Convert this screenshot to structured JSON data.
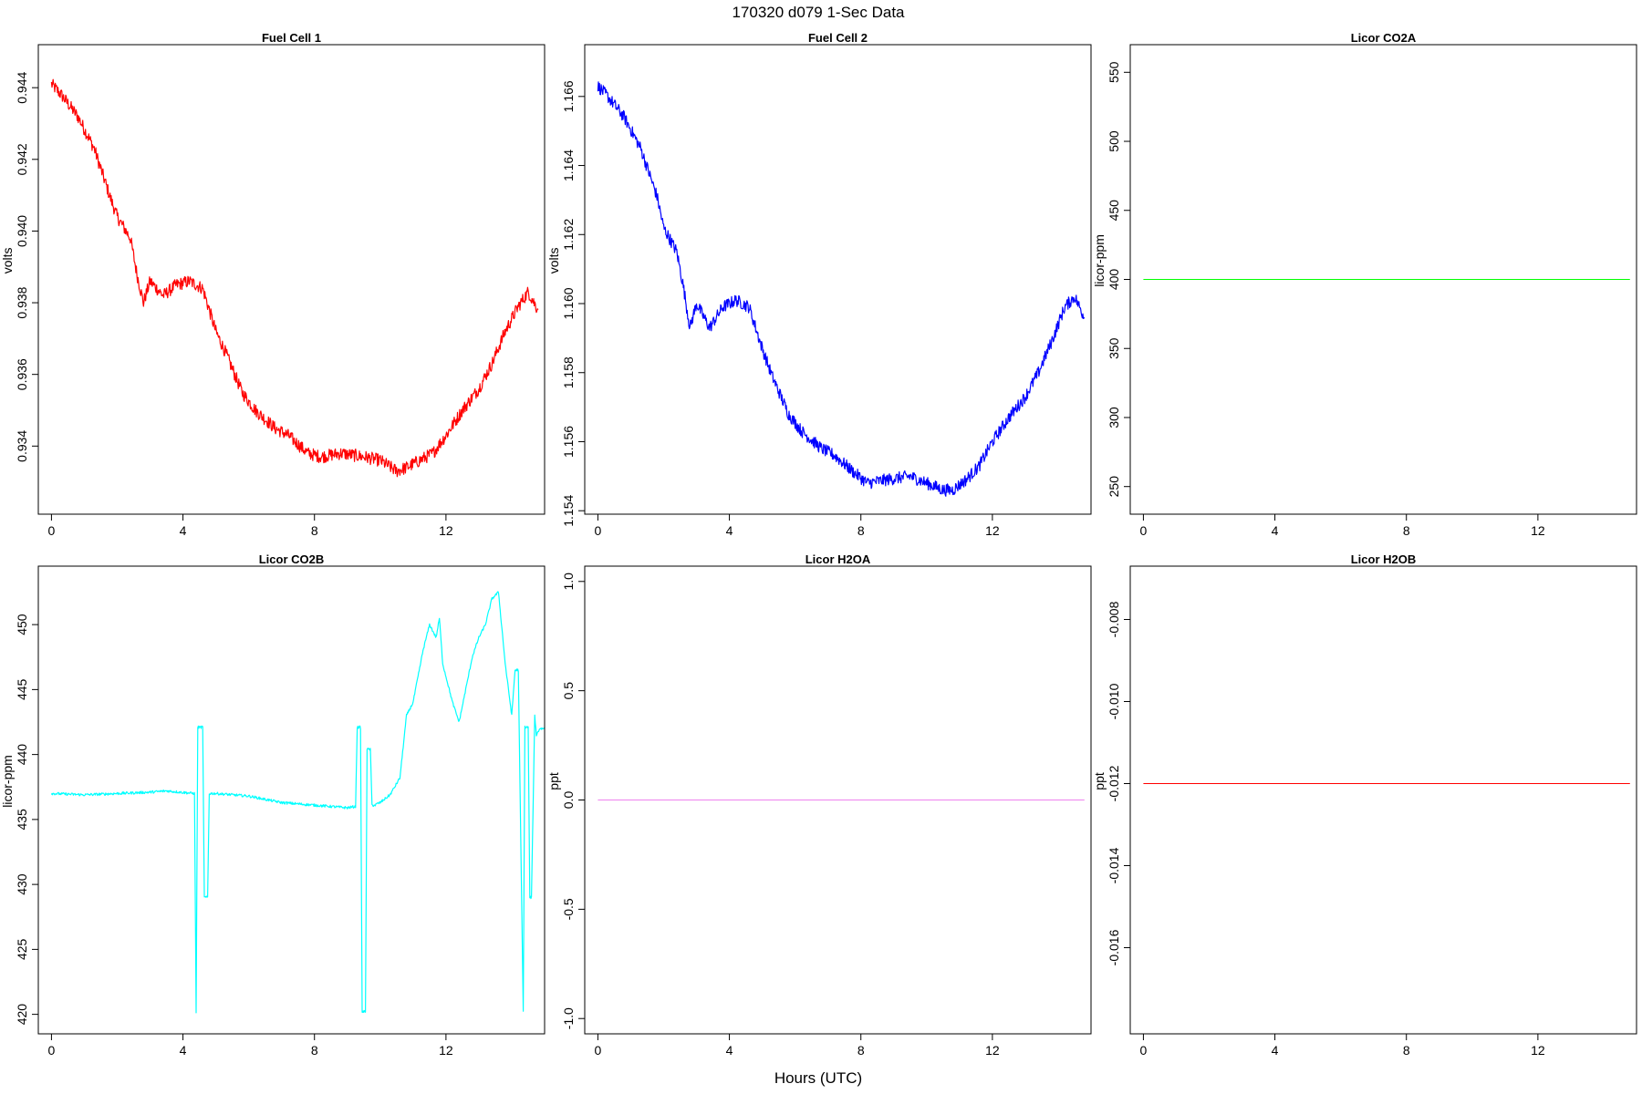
{
  "figure": {
    "title": "170320   d079   1-Sec Data",
    "xlabel": "Hours (UTC)"
  },
  "chart_data": [
    {
      "type": "line",
      "title": "Fuel Cell 1",
      "ylabel": "volts",
      "color": "#ff0000",
      "xlim": [
        -0.4,
        15.0
      ],
      "ylim": [
        0.9321,
        0.9452
      ],
      "xticks": [
        0,
        4,
        8,
        12
      ],
      "yticks": [
        0.934,
        0.936,
        0.938,
        0.94,
        0.942,
        0.944
      ],
      "ytick_labels": [
        "0.934",
        "0.936",
        "0.938",
        "0.940",
        "0.942",
        "0.944"
      ],
      "noise": 0.00018,
      "series": [
        {
          "x": [
            0,
            0.3,
            0.8,
            1.3,
            1.8,
            2.0,
            2.4,
            2.6,
            2.8,
            3.0,
            3.4,
            3.8,
            4.2,
            4.6,
            5.0,
            5.3,
            5.8,
            6.2,
            6.8,
            7.2,
            7.8,
            8.2,
            8.8,
            9.5,
            10.0,
            10.5,
            10.8,
            11.2,
            11.6,
            12.0,
            12.5,
            13.0,
            13.4,
            13.8,
            14.2,
            14.5,
            14.8
          ],
          "values": [
            0.9441,
            0.9438,
            0.9432,
            0.9423,
            0.9409,
            0.9404,
            0.9398,
            0.9388,
            0.938,
            0.9386,
            0.9382,
            0.9385,
            0.9386,
            0.9384,
            0.9372,
            0.9366,
            0.9355,
            0.935,
            0.9345,
            0.9343,
            0.9338,
            0.9337,
            0.9338,
            0.9337,
            0.9336,
            0.9333,
            0.9334,
            0.9336,
            0.9338,
            0.9343,
            0.935,
            0.9356,
            0.9363,
            0.9372,
            0.9379,
            0.9383,
            0.9378
          ]
        }
      ]
    },
    {
      "type": "line",
      "title": "Fuel Cell 2",
      "ylabel": "volts",
      "color": "#0000ff",
      "xlim": [
        -0.4,
        15.0
      ],
      "ylim": [
        1.1539,
        1.1675
      ],
      "xticks": [
        0,
        4,
        8,
        12
      ],
      "yticks": [
        1.154,
        1.156,
        1.158,
        1.16,
        1.162,
        1.164,
        1.166
      ],
      "ytick_labels": [
        "1.154",
        "1.156",
        "1.158",
        "1.160",
        "1.162",
        "1.164",
        "1.166"
      ],
      "noise": 0.00018,
      "series": [
        {
          "x": [
            0,
            0.3,
            0.8,
            1.3,
            1.8,
            2.0,
            2.4,
            2.6,
            2.8,
            3.0,
            3.4,
            3.8,
            4.2,
            4.6,
            5.0,
            5.3,
            5.8,
            6.2,
            6.8,
            7.2,
            7.8,
            8.2,
            8.8,
            9.5,
            10.0,
            10.5,
            10.8,
            11.2,
            11.6,
            12.0,
            12.5,
            13.0,
            13.4,
            13.8,
            14.2,
            14.5,
            14.8
          ],
          "values": [
            1.1663,
            1.166,
            1.1654,
            1.1645,
            1.1631,
            1.1622,
            1.1615,
            1.1605,
            1.1593,
            1.16,
            1.1593,
            1.1599,
            1.1601,
            1.1599,
            1.1587,
            1.1579,
            1.1568,
            1.1563,
            1.1558,
            1.1556,
            1.1551,
            1.1548,
            1.1549,
            1.155,
            1.1548,
            1.1546,
            1.1546,
            1.1549,
            1.1553,
            1.156,
            1.1567,
            1.1573,
            1.158,
            1.1589,
            1.1599,
            1.1602,
            1.1596
          ]
        }
      ]
    },
    {
      "type": "line",
      "title": "Licor CO2A",
      "ylabel": "licor-ppm",
      "color": "#00ff00",
      "xlim": [
        -0.4,
        15.0
      ],
      "ylim": [
        230,
        570
      ],
      "xticks": [
        0,
        4,
        8,
        12
      ],
      "yticks": [
        250,
        300,
        350,
        400,
        450,
        500,
        550
      ],
      "ytick_labels": [
        "250",
        "300",
        "350",
        "400",
        "450",
        "500",
        "550"
      ],
      "noise": 0,
      "series": [
        {
          "x": [
            0,
            14.8
          ],
          "values": [
            400,
            400
          ]
        }
      ]
    },
    {
      "type": "line",
      "title": "Licor CO2B",
      "ylabel": "licor-ppm",
      "color": "#00ffff",
      "xlim": [
        -0.4,
        15.0
      ],
      "ylim": [
        418.5,
        454.5
      ],
      "xticks": [
        0,
        4,
        8,
        12
      ],
      "yticks": [
        420,
        425,
        430,
        435,
        440,
        445,
        450
      ],
      "ytick_labels": [
        "420",
        "425",
        "430",
        "435",
        "440",
        "445",
        "450"
      ],
      "noise": 0.1,
      "series": [
        {
          "x": [
            0,
            1,
            2,
            3,
            3.5,
            4.35,
            4.4,
            4.45,
            4.6,
            4.65,
            4.75,
            4.8,
            4.9,
            4.95,
            5.0,
            6,
            7,
            8,
            9,
            9.25,
            9.3,
            9.4,
            9.45,
            9.55,
            9.6,
            9.7,
            9.75,
            9.85,
            9.9,
            10.0,
            10.3,
            10.6,
            10.8,
            11.0,
            11.3,
            11.5,
            11.7,
            11.8,
            11.9,
            12.0,
            12.2,
            12.4,
            12.6,
            12.8,
            13.0,
            13.2,
            13.4,
            13.6,
            13.8,
            14.0,
            14.1,
            14.2,
            14.35,
            14.4,
            14.5,
            14.55,
            14.6,
            14.7,
            14.75,
            14.85,
            14.9,
            15.0
          ],
          "values": [
            437,
            436.9,
            437.0,
            437.1,
            437.2,
            437.0,
            420.2,
            442.1,
            442.1,
            429.0,
            429.0,
            437.0,
            437.0,
            437.0,
            437.0,
            436.8,
            436.3,
            436.1,
            435.9,
            436.0,
            442.1,
            442.1,
            420.2,
            420.2,
            440.4,
            440.4,
            436.1,
            436.1,
            436.2,
            436.3,
            436.9,
            438.2,
            443.0,
            444.0,
            448.0,
            450.0,
            449.0,
            450.5,
            447.0,
            446.0,
            444.0,
            442.5,
            445.0,
            447.5,
            449.0,
            450.0,
            452.0,
            452.5,
            447.0,
            443.0,
            446.5,
            446.5,
            420.2,
            442.1,
            442.1,
            429.0,
            429.0,
            443.0,
            441.5,
            442.0,
            442.0,
            442.0
          ]
        }
      ]
    },
    {
      "type": "line",
      "title": "Licor H2OA",
      "ylabel": "ppt",
      "color": "#ee82ee",
      "xlim": [
        -0.4,
        15.0
      ],
      "ylim": [
        -1.07,
        1.07
      ],
      "xticks": [
        0,
        4,
        8,
        12
      ],
      "yticks": [
        -1.0,
        -0.5,
        0.0,
        0.5,
        1.0
      ],
      "ytick_labels": [
        "-1.0",
        "-0.5",
        "0.0",
        "0.5",
        "1.0"
      ],
      "noise": 0,
      "series": [
        {
          "x": [
            0,
            14.8
          ],
          "values": [
            0,
            0
          ]
        }
      ]
    },
    {
      "type": "line",
      "title": "Licor H2OB",
      "ylabel": "ppt",
      "color": "#ff0000",
      "xlim": [
        -0.4,
        15.0
      ],
      "ylim": [
        -0.0181,
        -0.0067
      ],
      "xticks": [
        0,
        4,
        8,
        12
      ],
      "yticks": [
        -0.016,
        -0.014,
        -0.012,
        -0.01,
        -0.008
      ],
      "ytick_labels": [
        "-0.016",
        "-0.014",
        "-0.012",
        "-0.010",
        "-0.008"
      ],
      "noise": 0,
      "series": [
        {
          "x": [
            0,
            14.8
          ],
          "values": [
            -0.012,
            -0.012
          ]
        }
      ]
    }
  ]
}
